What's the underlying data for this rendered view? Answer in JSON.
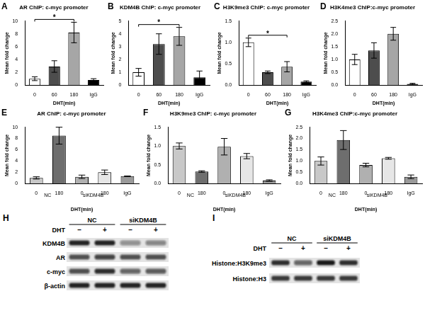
{
  "chart_data": [
    {
      "panel": "A",
      "type": "bar",
      "title": "AR ChIP: c-myc promoter",
      "y_label": "Mean fold change",
      "x_label": "DHT(min)",
      "categories": [
        "0",
        "60",
        "180",
        "IgG"
      ],
      "values": [
        1.0,
        2.9,
        8.2,
        0.8
      ],
      "errors": [
        0.3,
        0.9,
        1.6,
        0.2
      ],
      "colors": [
        "#ffffff",
        "#4d4d4d",
        "#a6a6a6",
        "#000000"
      ],
      "ylim": [
        0,
        10
      ],
      "yticks": [
        0,
        2,
        4,
        6,
        8,
        10
      ],
      "grid": false,
      "significance": [
        {
          "between": [
            0,
            2
          ],
          "label": "*"
        }
      ]
    },
    {
      "panel": "B",
      "type": "bar",
      "title": "KDM4B ChIP: c-myc promoter",
      "y_label": "Mean fold change",
      "x_label": "DHT(min)",
      "categories": [
        "0",
        "60",
        "180",
        "IgG"
      ],
      "values": [
        1.0,
        3.2,
        3.8,
        0.6
      ],
      "errors": [
        0.3,
        0.8,
        0.7,
        0.5
      ],
      "colors": [
        "#ffffff",
        "#4d4d4d",
        "#a6a6a6",
        "#000000"
      ],
      "ylim": [
        0,
        5
      ],
      "yticks": [
        0,
        1,
        2,
        3,
        4,
        5
      ],
      "grid": false,
      "significance": [
        {
          "between": [
            0,
            2
          ],
          "label": "*"
        }
      ]
    },
    {
      "panel": "C",
      "type": "bar",
      "title": "H3K9me3 ChIP: c-myc promoter",
      "y_label": "Mean fold change",
      "x_label": "DHT(min)",
      "categories": [
        "0",
        "60",
        "180",
        "IgG"
      ],
      "values": [
        1.0,
        0.3,
        0.43,
        0.08
      ],
      "errors": [
        0.1,
        0.03,
        0.12,
        0.02
      ],
      "colors": [
        "#ffffff",
        "#4d4d4d",
        "#a6a6a6",
        "#000000"
      ],
      "ylim": [
        0,
        1.5
      ],
      "yticks": [
        {
          "value": 0,
          "label": "0.0"
        },
        0.5,
        {
          "value": 1,
          "label": "1.0"
        },
        1.5
      ],
      "grid": false,
      "significance": [
        {
          "between": [
            0,
            2
          ],
          "label": "*"
        }
      ]
    },
    {
      "panel": "D",
      "type": "bar",
      "title": "H3K4me3 ChIP:c-myc promoter",
      "y_label": "Mean fold change",
      "x_label": "DHT(min)",
      "categories": [
        "0",
        "60",
        "180",
        "IgG"
      ],
      "values": [
        1.0,
        1.35,
        2.0,
        0.05
      ],
      "errors": [
        0.2,
        0.3,
        0.25,
        0.02
      ],
      "colors": [
        "#ffffff",
        "#4d4d4d",
        "#a6a6a6",
        "#000000"
      ],
      "ylim": [
        0,
        2.5
      ],
      "yticks": [
        {
          "value": 0,
          "label": "0.0"
        },
        0.5,
        {
          "value": 1,
          "label": "1.0"
        },
        1.5,
        {
          "value": 2,
          "label": "2.0"
        },
        2.5
      ],
      "grid": false
    },
    {
      "panel": "E",
      "type": "bar",
      "title": "AR ChIP: c-myc promoter",
      "y_label": "Mean fold change",
      "x_label": "DHT(min)",
      "categories": [
        "0",
        "180",
        "0",
        "180",
        "IgG"
      ],
      "values": [
        1.0,
        8.5,
        1.2,
        2.0,
        1.3
      ],
      "errors": [
        0.2,
        1.5,
        0.3,
        0.4,
        0.05
      ],
      "groups": [
        {
          "name": "NC",
          "start": 0,
          "end": 1
        },
        {
          "name": "siKDM4B",
          "start": 2,
          "end": 3
        }
      ],
      "colors": [
        "#c8c8c8",
        "#6e6e6e",
        "#b0b0b0",
        "#e6e6e6",
        "#9a9a9a"
      ],
      "ylim": [
        0,
        10
      ],
      "yticks": [
        0,
        2,
        4,
        6,
        8,
        10
      ],
      "grid": false
    },
    {
      "panel": "F",
      "type": "bar",
      "title": "H3K9me3 ChIP: c-myc promoter",
      "y_label": "Mean fold change",
      "x_label": "DHT(min)",
      "categories": [
        "0",
        "180",
        "0",
        "180",
        "IgG"
      ],
      "values": [
        1.0,
        0.32,
        0.98,
        0.73,
        0.08
      ],
      "errors": [
        0.08,
        0.02,
        0.22,
        0.07,
        0.02
      ],
      "groups": [
        {
          "name": "NC",
          "start": 0,
          "end": 1
        },
        {
          "name": "siKDM4B",
          "start": 2,
          "end": 3
        }
      ],
      "colors": [
        "#c8c8c8",
        "#6e6e6e",
        "#b0b0b0",
        "#e6e6e6",
        "#9a9a9a"
      ],
      "ylim": [
        0,
        1.5
      ],
      "yticks": [
        {
          "value": 0,
          "label": "0.0"
        },
        0.5,
        {
          "value": 1,
          "label": "1.0"
        },
        1.5
      ],
      "grid": false
    },
    {
      "panel": "G",
      "type": "bar",
      "title": "H3K4me3 ChIP:c-myc promoter",
      "y_label": "Mean fold change",
      "x_label": "DHT(min)",
      "categories": [
        "0",
        "180",
        "0",
        "180",
        "IgG"
      ],
      "values": [
        1.0,
        1.93,
        0.82,
        1.12,
        0.3
      ],
      "errors": [
        0.18,
        0.42,
        0.08,
        0.04,
        0.08
      ],
      "groups": [
        {
          "name": "NC",
          "start": 0,
          "end": 1
        },
        {
          "name": "siKDM4B",
          "start": 2,
          "end": 3
        }
      ],
      "colors": [
        "#c8c8c8",
        "#6e6e6e",
        "#b0b0b0",
        "#e6e6e6",
        "#9a9a9a"
      ],
      "ylim": [
        0,
        2.5
      ],
      "yticks": [
        {
          "value": 0,
          "label": "0.0"
        },
        0.5,
        {
          "value": 1,
          "label": "1.0"
        },
        1.5,
        {
          "value": 2,
          "label": "2.0"
        },
        2.5
      ],
      "grid": false
    }
  ],
  "blots": [
    {
      "panel": "H",
      "groups": [
        "NC",
        "siKDM4B"
      ],
      "treatment": "DHT",
      "lanes": [
        "–",
        "+",
        "–",
        "+"
      ],
      "rows": [
        {
          "name": "KDM4B",
          "intensity": [
            0.9,
            0.9,
            0.4,
            0.45
          ]
        },
        {
          "name": "AR",
          "intensity": [
            0.7,
            0.75,
            0.7,
            0.7
          ]
        },
        {
          "name": "c-myc",
          "intensity": [
            0.7,
            0.85,
            0.6,
            0.65
          ]
        },
        {
          "name": "β-actin",
          "intensity": [
            0.9,
            0.9,
            0.9,
            0.9
          ]
        }
      ]
    },
    {
      "panel": "I",
      "groups": [
        "NC",
        "siKDM4B"
      ],
      "treatment": "DHT",
      "lanes": [
        "–",
        "+",
        "–",
        "+"
      ],
      "rows": [
        {
          "name": "Histone:H3K9me3",
          "intensity": [
            0.85,
            0.6,
            0.95,
            0.85
          ]
        },
        {
          "name": "Histone:H3",
          "intensity": [
            0.8,
            0.8,
            0.8,
            0.8
          ]
        }
      ]
    }
  ]
}
